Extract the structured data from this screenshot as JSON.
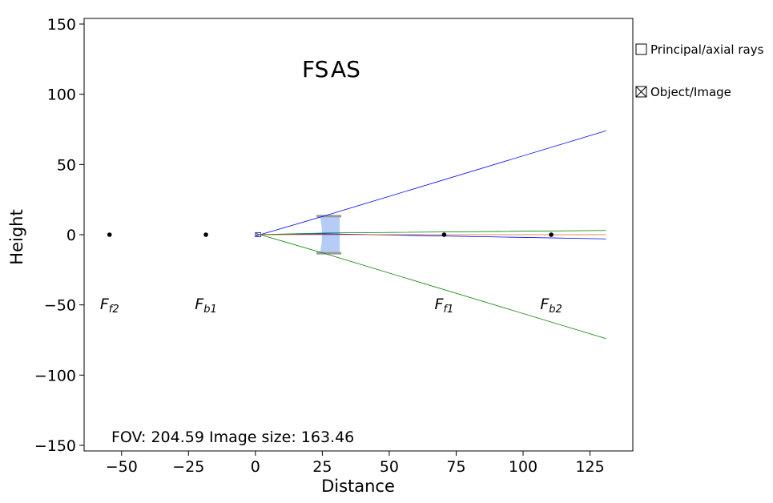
{
  "chart_data": {
    "type": "line",
    "xlabel": "Distance",
    "ylabel": "Height",
    "xlim": [
      -64,
      141
    ],
    "ylim": [
      -154,
      154
    ],
    "xticks": [
      -50,
      -25,
      0,
      25,
      50,
      75,
      100,
      125
    ],
    "yticks": [
      -150,
      -100,
      -50,
      0,
      50,
      100,
      150
    ],
    "xtick_labels": [
      "−50",
      "−25",
      "0",
      "25",
      "50",
      "75",
      "100",
      "125"
    ],
    "ytick_labels": [
      "−150",
      "−100",
      "−50",
      "0",
      "50",
      "100",
      "150"
    ],
    "grid": false,
    "annotations": [
      "FS",
      "AS"
    ],
    "rays": [
      {
        "color": "#0000ff",
        "points": [
          [
            0,
            -1
          ],
          [
            26,
            13.5
          ],
          [
            131,
            74
          ]
        ]
      },
      {
        "color": "#008000",
        "points": [
          [
            0,
            1
          ],
          [
            26,
            -13.5
          ],
          [
            131,
            -74
          ]
        ]
      },
      {
        "color": "#0000ff",
        "points": [
          [
            0,
            0
          ],
          [
            26,
            0.6
          ],
          [
            131,
            -3
          ]
        ]
      },
      {
        "color": "#008000",
        "points": [
          [
            0,
            0
          ],
          [
            26,
            1.2
          ],
          [
            131,
            3
          ]
        ]
      },
      {
        "color": "#d2691e",
        "points": [
          [
            0,
            0
          ],
          [
            131,
            0
          ]
        ]
      }
    ],
    "lens": {
      "x_front": 24,
      "x_back": 31.5,
      "half_height": 13.5,
      "fill": "#a8c4f5"
    },
    "focal_points": [
      {
        "name": "F_f2",
        "base": "F",
        "sub": "f2",
        "x": -54.5,
        "y": 0
      },
      {
        "name": "F_b1",
        "base": "F",
        "sub": "b1",
        "x": -18.5,
        "y": 0
      },
      {
        "name": "F_f1",
        "base": "F",
        "sub": "f1",
        "x": 70.5,
        "y": 0
      },
      {
        "name": "F_b2",
        "base": "F",
        "sub": "b2",
        "x": 110.5,
        "y": 0
      }
    ],
    "focal_label_y": -48
  },
  "footer": {
    "text": "FOV: 204.59 Image size: 163.46"
  },
  "checkboxes": [
    {
      "label": "Principal/axial rays",
      "checked": false
    },
    {
      "label": "Object/Image",
      "checked": true
    }
  ]
}
